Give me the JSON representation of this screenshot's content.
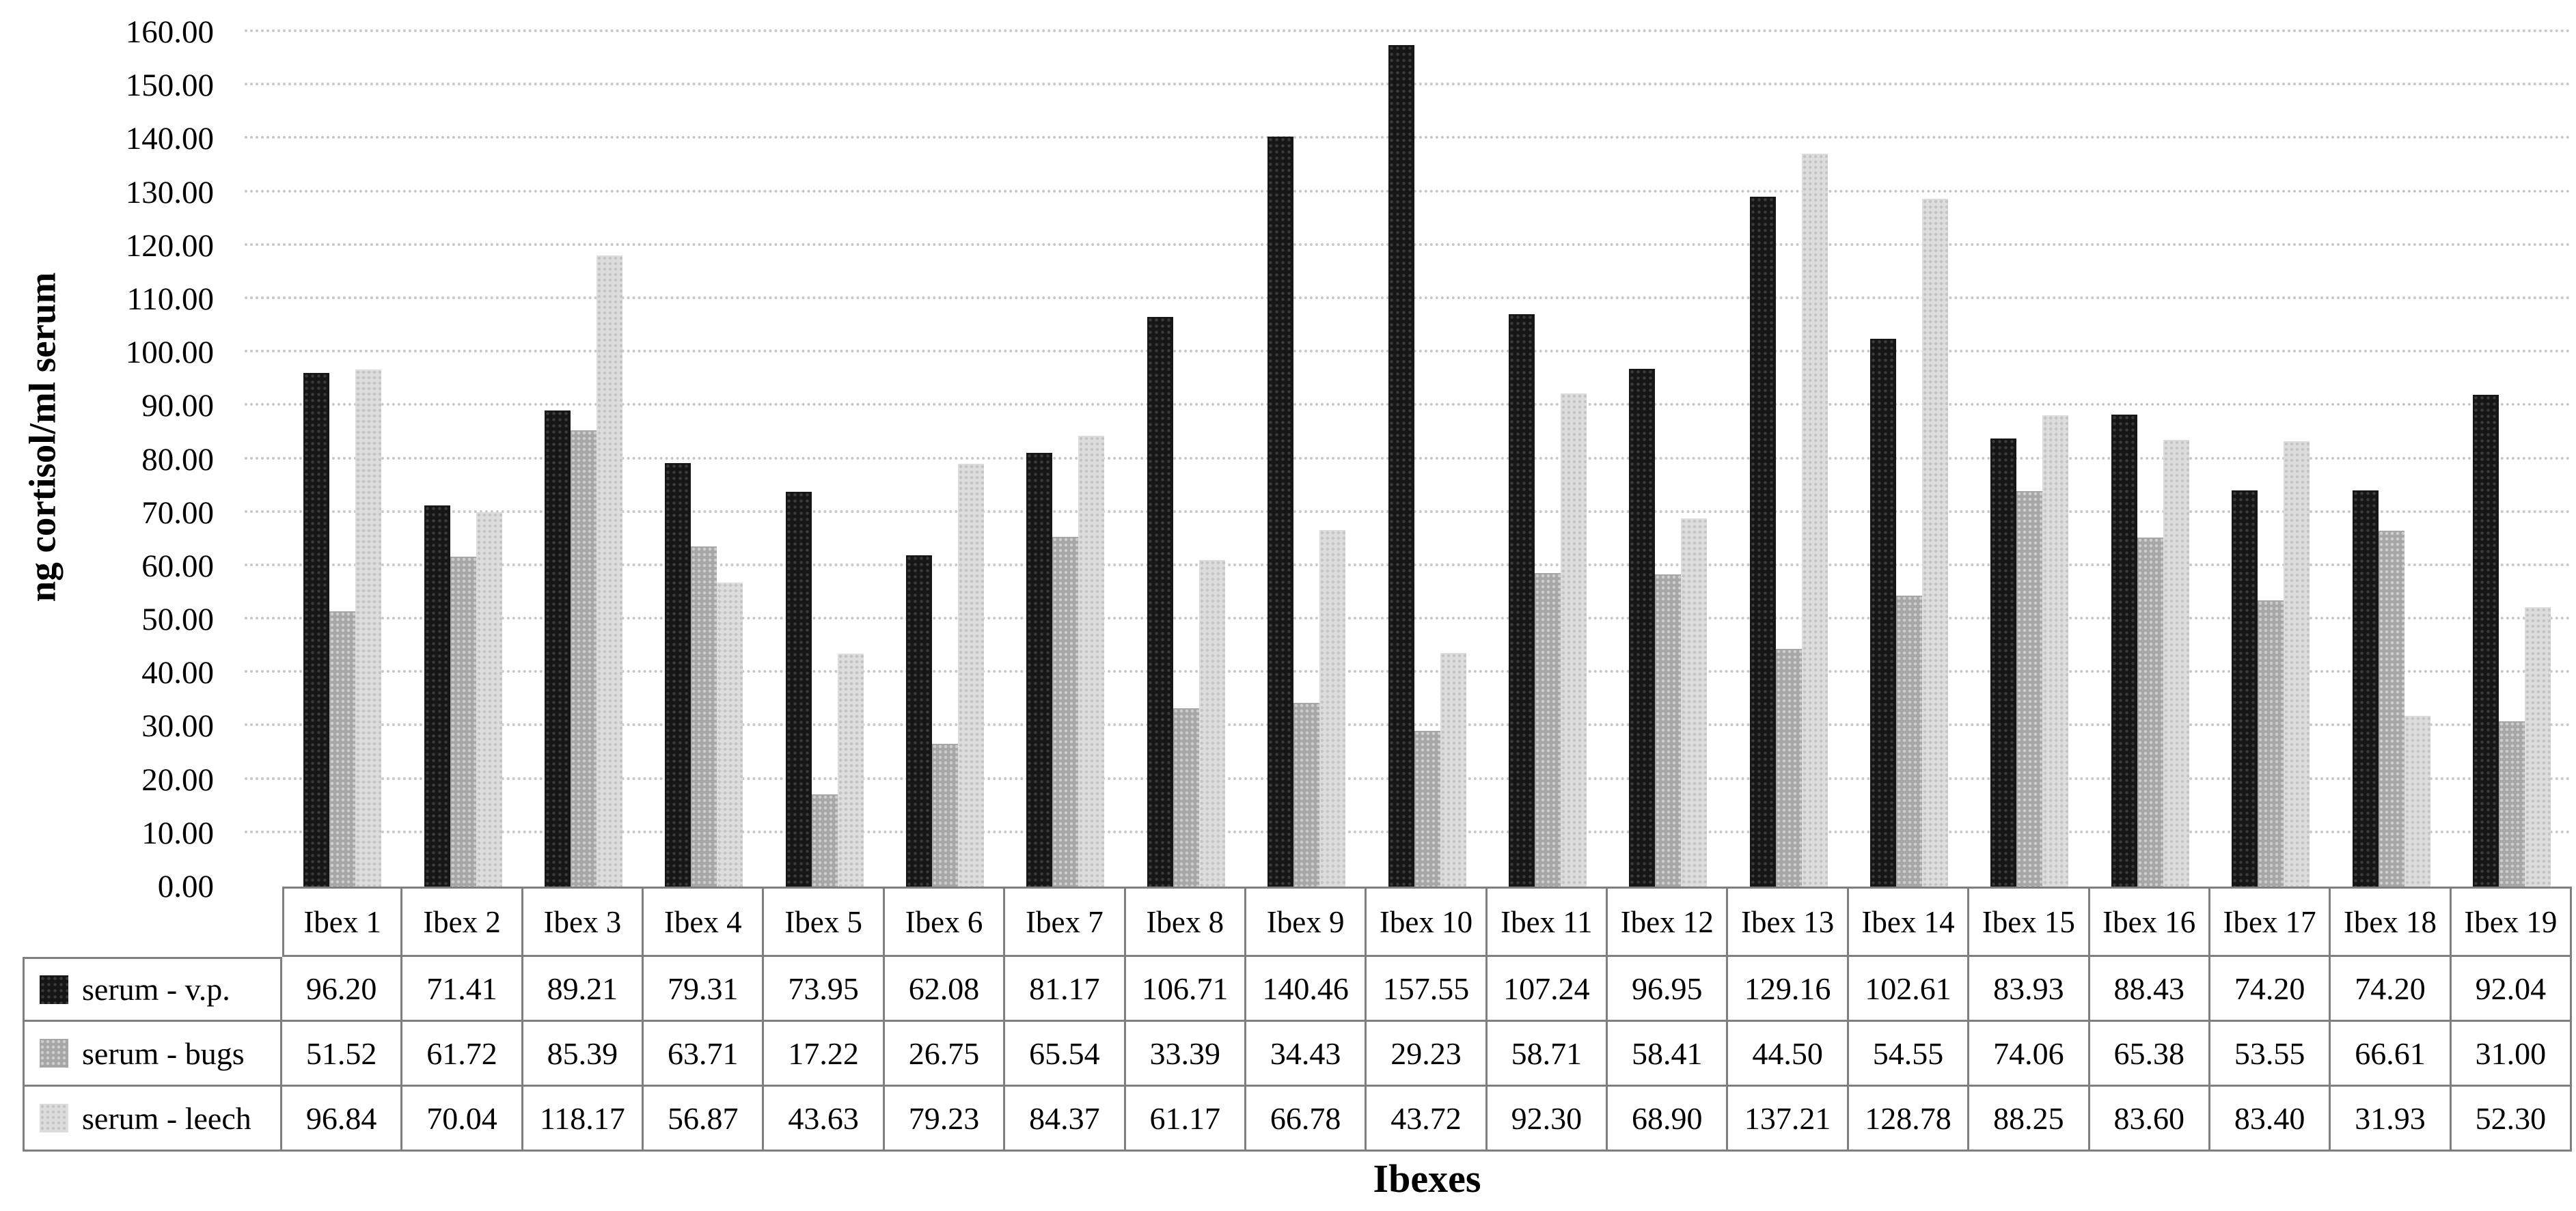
{
  "figure": {
    "y_axis_title": "ng cortisol/ml serum",
    "x_axis_title": "Ibexes"
  },
  "chart_data": {
    "type": "bar",
    "title": "",
    "xlabel": "Ibexes",
    "ylabel": "ng cortisol/ml serum",
    "ylim": [
      0,
      160
    ],
    "ytick_step": 10,
    "ytick_labels": [
      "0.00",
      "10.00",
      "20.00",
      "30.00",
      "40.00",
      "50.00",
      "60.00",
      "70.00",
      "80.00",
      "90.00",
      "100.00",
      "110.00",
      "120.00",
      "130.00",
      "140.00",
      "150.00",
      "160.00"
    ],
    "grid": true,
    "legend_position": "data-table-left",
    "value_decimals": 2,
    "categories": [
      "Ibex 1",
      "Ibex 2",
      "Ibex 3",
      "Ibex 4",
      "Ibex 5",
      "Ibex 6",
      "Ibex 7",
      "Ibex 8",
      "Ibex 9",
      "Ibex 10",
      "Ibex 11",
      "Ibex 12",
      "Ibex 13",
      "Ibex 14",
      "Ibex 15",
      "Ibex 16",
      "Ibex 17",
      "Ibex 18",
      "Ibex 19"
    ],
    "series": [
      {
        "name": "serum - v.p.",
        "color": "#161616",
        "values": [
          96.2,
          71.41,
          89.21,
          79.31,
          73.95,
          62.08,
          81.17,
          106.71,
          140.46,
          157.55,
          107.24,
          96.95,
          129.16,
          102.61,
          83.93,
          88.43,
          74.2,
          74.2,
          92.04
        ]
      },
      {
        "name": "serum - bugs",
        "color": "#a6a6a6",
        "values": [
          51.52,
          61.72,
          85.39,
          63.71,
          17.22,
          26.75,
          65.54,
          33.39,
          34.43,
          29.23,
          58.71,
          58.41,
          44.5,
          54.55,
          74.06,
          65.38,
          53.55,
          66.61,
          31.0
        ]
      },
      {
        "name": "serum - leech",
        "color": "#dddddd",
        "values": [
          96.84,
          70.04,
          118.17,
          56.87,
          43.63,
          79.23,
          84.37,
          61.17,
          66.78,
          43.72,
          92.3,
          68.9,
          137.21,
          128.78,
          88.25,
          83.6,
          83.4,
          31.93,
          52.3
        ]
      }
    ]
  }
}
